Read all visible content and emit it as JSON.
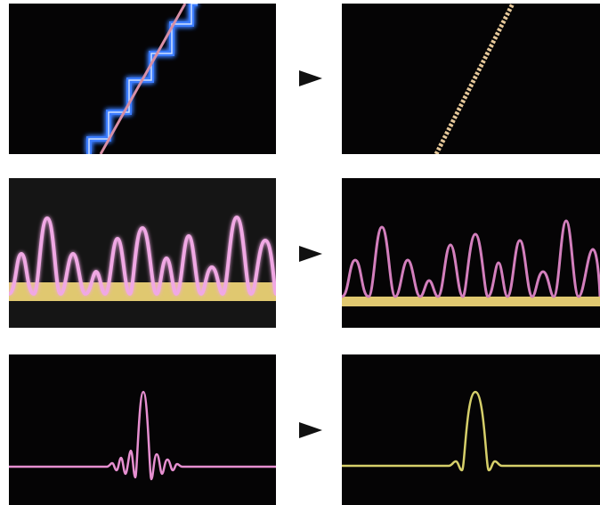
{
  "rows": [
    {
      "name": "staircase-vs-smooth-line",
      "left": {
        "description_icon": "staircase-line"
      },
      "right": {
        "description_icon": "smooth-line"
      }
    },
    {
      "name": "waveform-with-baseline",
      "left": {
        "description_icon": "waveform"
      },
      "right": {
        "description_icon": "waveform"
      }
    },
    {
      "name": "sinc-pulse",
      "left": {
        "description_icon": "sinc-pulse-ringing"
      },
      "right": {
        "description_icon": "sinc-pulse-clean"
      }
    }
  ],
  "colors": {
    "panel_bg": "#050405",
    "glow_blue": "#3a7bff",
    "pink": "#e68fd0",
    "yellow": "#e0c870",
    "arrow": "#111111"
  }
}
